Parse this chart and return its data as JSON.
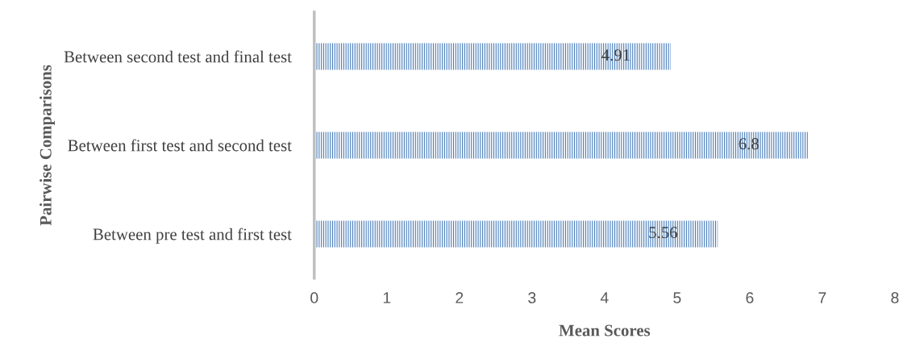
{
  "chart_data": {
    "type": "bar",
    "orientation": "horizontal",
    "categories": [
      "Between second test and final test",
      "Between first test and second test",
      "Between pre test and first test"
    ],
    "values": [
      4.91,
      6.8,
      5.56
    ],
    "color": "#4a7ebb",
    "xlim": [
      0,
      8
    ],
    "xticks": [
      0,
      1,
      2,
      3,
      4,
      5,
      6,
      7,
      8
    ],
    "xlabel": "Mean Scores",
    "ylabel": "Pairwise Comparisons",
    "data_labels": true,
    "grid": false,
    "legend": false
  }
}
